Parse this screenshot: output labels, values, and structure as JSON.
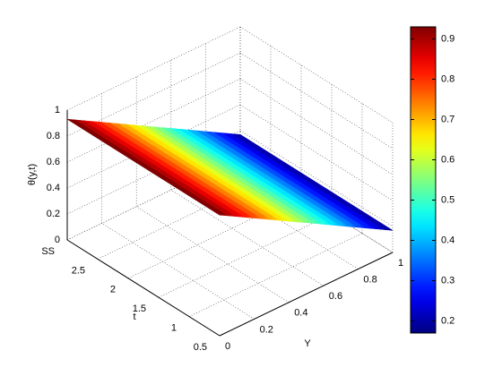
{
  "chart_data": {
    "type": "surface",
    "zlabel": "θ(y,t)",
    "tlabel": "t",
    "ylabel": "Y",
    "t": [
      0.5,
      3
    ],
    "y": [
      0,
      0.05,
      0.1,
      0.15,
      0.2,
      0.25,
      0.3,
      0.35,
      0.4,
      0.45,
      0.5,
      0.55,
      0.6,
      0.65,
      0.7,
      0.75,
      0.8,
      0.85,
      0.9,
      0.95,
      1
    ],
    "z": [
      [
        0.93,
        0.892,
        0.854,
        0.816,
        0.778,
        0.74,
        0.702,
        0.664,
        0.626,
        0.588,
        0.55,
        0.512,
        0.474,
        0.436,
        0.398,
        0.36,
        0.322,
        0.284,
        0.246,
        0.208,
        0.17
      ],
      [
        0.93,
        0.892,
        0.854,
        0.816,
        0.778,
        0.74,
        0.702,
        0.664,
        0.626,
        0.588,
        0.55,
        0.512,
        0.474,
        0.436,
        0.398,
        0.36,
        0.322,
        0.284,
        0.246,
        0.208,
        0.17
      ]
    ],
    "tlim": [
      0.5,
      3
    ],
    "tticks": [
      0.5,
      1,
      1.5,
      2,
      2.5,
      {
        "value": 3,
        "label": "SS"
      }
    ],
    "ylim": [
      0,
      1
    ],
    "yticks": [
      0,
      0.2,
      0.4,
      0.6,
      0.8,
      1
    ],
    "zlim": [
      0,
      1
    ],
    "zticks": [
      0,
      0.2,
      0.4,
      0.6,
      0.8,
      1
    ],
    "colormap": "jet",
    "clim": [
      0.17,
      0.93
    ],
    "cticks": [
      0.2,
      0.3,
      0.4,
      0.5,
      0.6,
      0.7,
      0.8,
      0.9
    ],
    "grid": true
  }
}
